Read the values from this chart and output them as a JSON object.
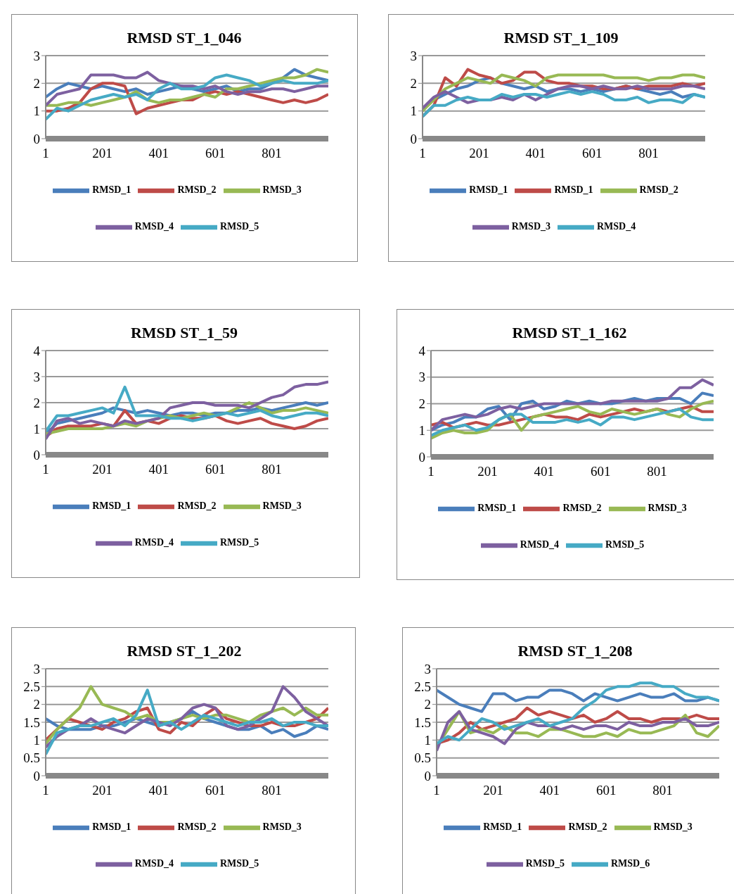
{
  "chart_data": [
    {
      "type": "line",
      "title": "RMSD  ST_1_046",
      "x": [
        1,
        41,
        81,
        121,
        161,
        201,
        241,
        281,
        321,
        361,
        401,
        441,
        481,
        521,
        561,
        601,
        641,
        681,
        721,
        761,
        801,
        841,
        881,
        921,
        961,
        1001
      ],
      "xlim": [
        1,
        1001
      ],
      "xticks": [
        1,
        201,
        401,
        601,
        801
      ],
      "ylim": [
        0,
        3
      ],
      "yticks": [
        0,
        1,
        2,
        3
      ],
      "grid": "y",
      "legend": "bottom",
      "marker": "none",
      "series": [
        {
          "name": "RMSD_1",
          "color": "#4a7ebb",
          "values": [
            1.5,
            1.8,
            2.0,
            1.9,
            1.8,
            1.9,
            1.8,
            1.7,
            1.8,
            1.6,
            1.7,
            1.8,
            1.9,
            1.8,
            1.7,
            1.8,
            1.9,
            1.7,
            1.8,
            1.8,
            2.0,
            2.2,
            2.5,
            2.3,
            2.2,
            2.1
          ]
        },
        {
          "name": "RMSD_2",
          "color": "#be4b48",
          "values": [
            1.0,
            1.0,
            1.1,
            1.3,
            1.8,
            2.0,
            2.0,
            1.9,
            0.9,
            1.1,
            1.2,
            1.3,
            1.4,
            1.4,
            1.6,
            1.7,
            1.6,
            1.7,
            1.6,
            1.5,
            1.4,
            1.3,
            1.4,
            1.3,
            1.4,
            1.6
          ]
        },
        {
          "name": "RMSD_3",
          "color": "#98b954",
          "values": [
            1.2,
            1.2,
            1.3,
            1.3,
            1.2,
            1.3,
            1.4,
            1.5,
            1.7,
            1.4,
            1.3,
            1.4,
            1.4,
            1.5,
            1.6,
            1.5,
            1.8,
            1.8,
            1.9,
            2.0,
            2.1,
            2.2,
            2.2,
            2.3,
            2.5,
            2.4
          ]
        },
        {
          "name": "RMSD_4",
          "color": "#7d60a0",
          "values": [
            1.2,
            1.6,
            1.7,
            1.8,
            2.3,
            2.3,
            2.3,
            2.2,
            2.2,
            2.4,
            2.1,
            2.0,
            1.9,
            1.9,
            1.8,
            1.9,
            1.7,
            1.6,
            1.7,
            1.7,
            1.8,
            1.8,
            1.7,
            1.8,
            1.9,
            1.9
          ]
        },
        {
          "name": "RMSD_5",
          "color": "#46aac5",
          "values": [
            0.7,
            1.1,
            1.0,
            1.2,
            1.4,
            1.5,
            1.6,
            1.5,
            1.6,
            1.4,
            1.8,
            2.0,
            1.8,
            1.8,
            1.9,
            2.2,
            2.3,
            2.2,
            2.1,
            1.9,
            2.0,
            2.1,
            2.0,
            2.0,
            2.0,
            2.1
          ]
        }
      ]
    },
    {
      "type": "line",
      "title": "RMSD  ST_1_109",
      "x": [
        1,
        41,
        81,
        121,
        161,
        201,
        241,
        281,
        321,
        361,
        401,
        441,
        481,
        521,
        561,
        601,
        641,
        681,
        721,
        761,
        801,
        841,
        881,
        921,
        961,
        1001
      ],
      "xlim": [
        1,
        1001
      ],
      "xticks": [
        1,
        201,
        401,
        601,
        801
      ],
      "ylim": [
        0,
        3
      ],
      "yticks": [
        0,
        1,
        2,
        3
      ],
      "grid": "y",
      "legend": "bottom",
      "marker": "none",
      "series": [
        {
          "name": "RMSD_1",
          "color": "#4a7ebb",
          "values": [
            1.1,
            1.4,
            1.6,
            1.8,
            1.9,
            2.1,
            2.2,
            2.0,
            1.9,
            1.8,
            1.9,
            1.7,
            1.8,
            1.8,
            1.7,
            1.8,
            1.7,
            1.8,
            1.9,
            1.8,
            1.7,
            1.6,
            1.7,
            1.5,
            1.6,
            1.5
          ]
        },
        {
          "name": "RMSD_1",
          "color": "#be4b48",
          "values": [
            0.8,
            1.2,
            2.2,
            1.9,
            2.5,
            2.3,
            2.2,
            2.0,
            2.1,
            2.4,
            2.4,
            2.1,
            2.0,
            2.0,
            1.9,
            1.9,
            1.8,
            1.8,
            1.9,
            1.8,
            1.9,
            1.9,
            1.9,
            2.0,
            1.9,
            2.0
          ]
        },
        {
          "name": "RMSD_2",
          "color": "#98b954",
          "values": [
            1.0,
            1.4,
            1.8,
            2.0,
            2.2,
            2.1,
            2.0,
            2.3,
            2.2,
            2.1,
            1.9,
            2.2,
            2.3,
            2.3,
            2.3,
            2.3,
            2.3,
            2.2,
            2.2,
            2.2,
            2.1,
            2.2,
            2.2,
            2.3,
            2.3,
            2.2
          ]
        },
        {
          "name": "RMSD_3",
          "color": "#7d60a0",
          "values": [
            1.1,
            1.5,
            1.7,
            1.5,
            1.3,
            1.4,
            1.4,
            1.5,
            1.4,
            1.6,
            1.4,
            1.6,
            1.8,
            1.9,
            1.9,
            1.8,
            1.9,
            1.8,
            1.8,
            1.9,
            1.8,
            1.8,
            1.8,
            1.9,
            1.9,
            1.8
          ]
        },
        {
          "name": "RMSD_4",
          "color": "#46aac5",
          "values": [
            0.8,
            1.2,
            1.2,
            1.4,
            1.5,
            1.4,
            1.4,
            1.6,
            1.5,
            1.6,
            1.6,
            1.5,
            1.6,
            1.7,
            1.6,
            1.7,
            1.6,
            1.4,
            1.4,
            1.5,
            1.3,
            1.4,
            1.4,
            1.3,
            1.6,
            1.5
          ]
        }
      ]
    },
    {
      "type": "line",
      "title": "RMSD  ST_1_59",
      "x": [
        1,
        41,
        81,
        121,
        161,
        201,
        241,
        281,
        321,
        361,
        401,
        441,
        481,
        521,
        561,
        601,
        641,
        681,
        721,
        761,
        801,
        841,
        881,
        921,
        961,
        1001
      ],
      "xlim": [
        1,
        1001
      ],
      "xticks": [
        1,
        201,
        401,
        601,
        801
      ],
      "ylim": [
        0,
        4
      ],
      "yticks": [
        0,
        1,
        2,
        3,
        4
      ],
      "grid": "y",
      "legend": "bottom",
      "marker": "none",
      "series": [
        {
          "name": "RMSD_1",
          "color": "#4a7ebb",
          "values": [
            0.8,
            1.2,
            1.3,
            1.4,
            1.5,
            1.6,
            1.8,
            1.7,
            1.6,
            1.7,
            1.6,
            1.5,
            1.6,
            1.6,
            1.5,
            1.6,
            1.6,
            1.7,
            1.7,
            1.8,
            1.7,
            1.8,
            1.9,
            2.0,
            1.9,
            2.0
          ]
        },
        {
          "name": "RMSD_2",
          "color": "#be4b48",
          "values": [
            0.7,
            1.0,
            1.1,
            1.1,
            1.1,
            1.2,
            1.1,
            1.7,
            1.2,
            1.3,
            1.2,
            1.4,
            1.5,
            1.4,
            1.4,
            1.5,
            1.3,
            1.2,
            1.3,
            1.4,
            1.2,
            1.1,
            1.0,
            1.1,
            1.3,
            1.4
          ]
        },
        {
          "name": "RMSD_3",
          "color": "#98b954",
          "values": [
            0.8,
            0.9,
            1.0,
            1.0,
            1.0,
            1.0,
            1.1,
            1.2,
            1.1,
            1.3,
            1.4,
            1.5,
            1.4,
            1.5,
            1.6,
            1.5,
            1.6,
            1.8,
            2.0,
            1.8,
            1.6,
            1.7,
            1.7,
            1.8,
            1.7,
            1.6
          ]
        },
        {
          "name": "RMSD_4",
          "color": "#7d60a0",
          "values": [
            0.6,
            1.3,
            1.4,
            1.2,
            1.3,
            1.2,
            1.1,
            1.3,
            1.2,
            1.3,
            1.4,
            1.8,
            1.9,
            2.0,
            2.0,
            1.9,
            1.9,
            1.9,
            1.8,
            2.0,
            2.2,
            2.3,
            2.6,
            2.7,
            2.7,
            2.8
          ]
        },
        {
          "name": "RMSD_5",
          "color": "#46aac5",
          "values": [
            0.9,
            1.5,
            1.5,
            1.6,
            1.7,
            1.8,
            1.6,
            2.6,
            1.5,
            1.5,
            1.5,
            1.4,
            1.4,
            1.3,
            1.4,
            1.5,
            1.6,
            1.5,
            1.6,
            1.7,
            1.5,
            1.4,
            1.5,
            1.6,
            1.6,
            1.5
          ]
        }
      ]
    },
    {
      "type": "line",
      "title": "RMSD  ST_1_162",
      "x": [
        1,
        41,
        81,
        121,
        161,
        201,
        241,
        281,
        321,
        361,
        401,
        441,
        481,
        521,
        561,
        601,
        641,
        681,
        721,
        761,
        801,
        841,
        881,
        921,
        961,
        1001
      ],
      "xlim": [
        1,
        1001
      ],
      "xticks": [
        1,
        201,
        401,
        601,
        801
      ],
      "ylim": [
        0,
        4
      ],
      "yticks": [
        0,
        1,
        2,
        3,
        4
      ],
      "grid": "y",
      "legend": "bottom",
      "marker": "none",
      "series": [
        {
          "name": "RMSD_1",
          "color": "#4a7ebb",
          "values": [
            1.0,
            1.2,
            1.3,
            1.5,
            1.5,
            1.8,
            1.9,
            1.4,
            2.0,
            2.1,
            1.8,
            1.9,
            2.1,
            2.0,
            2.1,
            2.0,
            2.0,
            2.1,
            2.2,
            2.1,
            2.2,
            2.2,
            2.2,
            2.0,
            2.4,
            2.3
          ]
        },
        {
          "name": "RMSD_2",
          "color": "#be4b48",
          "values": [
            1.2,
            1.3,
            1.1,
            1.2,
            1.3,
            1.2,
            1.2,
            1.3,
            1.4,
            1.5,
            1.6,
            1.5,
            1.5,
            1.4,
            1.6,
            1.5,
            1.6,
            1.7,
            1.8,
            1.7,
            1.8,
            1.7,
            1.8,
            1.9,
            1.7,
            1.7
          ]
        },
        {
          "name": "RMSD_3",
          "color": "#98b954",
          "values": [
            0.7,
            0.9,
            1.0,
            0.9,
            0.9,
            1.0,
            1.4,
            1.6,
            1.0,
            1.5,
            1.6,
            1.7,
            1.8,
            1.9,
            1.7,
            1.6,
            1.8,
            1.7,
            1.6,
            1.7,
            1.8,
            1.6,
            1.5,
            1.8,
            2.0,
            2.1
          ]
        },
        {
          "name": "RMSD_4",
          "color": "#7d60a0",
          "values": [
            1.0,
            1.4,
            1.5,
            1.6,
            1.5,
            1.6,
            1.8,
            1.9,
            1.8,
            1.9,
            2.0,
            2.0,
            2.0,
            2.0,
            2.0,
            2.0,
            2.1,
            2.1,
            2.1,
            2.1,
            2.1,
            2.2,
            2.6,
            2.6,
            2.9,
            2.7
          ]
        },
        {
          "name": "RMSD_5",
          "color": "#46aac5",
          "values": [
            0.8,
            1.0,
            1.1,
            1.2,
            1.0,
            1.1,
            1.4,
            1.6,
            1.6,
            1.3,
            1.3,
            1.3,
            1.4,
            1.3,
            1.4,
            1.2,
            1.5,
            1.5,
            1.4,
            1.5,
            1.6,
            1.7,
            1.8,
            1.5,
            1.4,
            1.4
          ]
        }
      ]
    },
    {
      "type": "line",
      "title": "RMSD  ST_1_202",
      "x": [
        1,
        41,
        81,
        121,
        161,
        201,
        241,
        281,
        321,
        361,
        401,
        441,
        481,
        521,
        561,
        601,
        641,
        681,
        721,
        761,
        801,
        841,
        881,
        921,
        961,
        1001
      ],
      "xlim": [
        1,
        1001
      ],
      "xticks": [
        1,
        201,
        401,
        601,
        801
      ],
      "ylim": [
        0,
        3
      ],
      "yticks": [
        0,
        0.5,
        1,
        1.5,
        2,
        2.5,
        3
      ],
      "grid": "y",
      "legend": "bottom",
      "marker": "none",
      "series": [
        {
          "name": "RMSD_1",
          "color": "#4a7ebb",
          "values": [
            1.6,
            1.4,
            1.3,
            1.3,
            1.3,
            1.4,
            1.4,
            1.5,
            1.6,
            1.5,
            1.4,
            1.5,
            1.6,
            1.8,
            1.6,
            1.5,
            1.4,
            1.3,
            1.3,
            1.4,
            1.2,
            1.3,
            1.1,
            1.2,
            1.4,
            1.3
          ]
        },
        {
          "name": "RMSD_2",
          "color": "#be4b48",
          "values": [
            1.0,
            1.3,
            1.6,
            1.5,
            1.4,
            1.3,
            1.5,
            1.6,
            1.8,
            1.9,
            1.3,
            1.2,
            1.5,
            1.4,
            1.7,
            1.9,
            1.6,
            1.5,
            1.4,
            1.4,
            1.5,
            1.4,
            1.4,
            1.5,
            1.6,
            1.9
          ]
        },
        {
          "name": "RMSD_3",
          "color": "#98b954",
          "values": [
            0.9,
            1.3,
            1.6,
            1.9,
            2.5,
            2.0,
            1.9,
            1.8,
            1.6,
            1.7,
            1.5,
            1.5,
            1.6,
            1.7,
            1.6,
            1.7,
            1.7,
            1.6,
            1.5,
            1.7,
            1.8,
            1.9,
            1.7,
            1.9,
            1.7,
            1.7
          ]
        },
        {
          "name": "RMSD_4",
          "color": "#7d60a0",
          "values": [
            0.8,
            1.1,
            1.3,
            1.4,
            1.6,
            1.4,
            1.3,
            1.2,
            1.4,
            1.6,
            1.5,
            1.4,
            1.6,
            1.9,
            2.0,
            1.9,
            1.4,
            1.3,
            1.4,
            1.6,
            1.8,
            2.5,
            2.2,
            1.8,
            1.6,
            1.4
          ]
        },
        {
          "name": "RMSD_5",
          "color": "#46aac5",
          "values": [
            0.6,
            1.2,
            1.3,
            1.4,
            1.4,
            1.5,
            1.6,
            1.4,
            1.7,
            2.4,
            1.4,
            1.5,
            1.3,
            1.5,
            1.7,
            1.6,
            1.5,
            1.4,
            1.5,
            1.5,
            1.6,
            1.4,
            1.5,
            1.5,
            1.4,
            1.4
          ]
        }
      ]
    },
    {
      "type": "line",
      "title": "RMSD  ST_1_208",
      "x": [
        1,
        41,
        81,
        121,
        161,
        201,
        241,
        281,
        321,
        361,
        401,
        441,
        481,
        521,
        561,
        601,
        641,
        681,
        721,
        761,
        801,
        841,
        881,
        921,
        961,
        1001
      ],
      "xlim": [
        1,
        1001
      ],
      "xticks": [
        1,
        201,
        401,
        601,
        801
      ],
      "ylim": [
        0,
        3
      ],
      "yticks": [
        0,
        0.5,
        1,
        1.5,
        2,
        2.5,
        3
      ],
      "grid": "y",
      "legend": "bottom",
      "marker": "none",
      "series": [
        {
          "name": "RMSD_1",
          "color": "#4a7ebb",
          "values": [
            2.4,
            2.2,
            2.0,
            1.9,
            1.8,
            2.3,
            2.3,
            2.1,
            2.2,
            2.2,
            2.4,
            2.4,
            2.3,
            2.1,
            2.3,
            2.2,
            2.1,
            2.2,
            2.3,
            2.2,
            2.2,
            2.3,
            2.1,
            2.1,
            2.2,
            2.1
          ]
        },
        {
          "name": "RMSD_2",
          "color": "#be4b48",
          "values": [
            0.9,
            1.0,
            1.2,
            1.5,
            1.3,
            1.4,
            1.5,
            1.6,
            1.9,
            1.7,
            1.8,
            1.7,
            1.6,
            1.7,
            1.5,
            1.6,
            1.8,
            1.6,
            1.6,
            1.5,
            1.6,
            1.6,
            1.6,
            1.7,
            1.6,
            1.6
          ]
        },
        {
          "name": "RMSD_3",
          "color": "#98b954",
          "values": [
            0.8,
            1.3,
            1.8,
            1.2,
            1.3,
            1.2,
            1.4,
            1.2,
            1.2,
            1.1,
            1.3,
            1.3,
            1.2,
            1.1,
            1.1,
            1.2,
            1.1,
            1.3,
            1.2,
            1.2,
            1.3,
            1.4,
            1.7,
            1.2,
            1.1,
            1.4
          ]
        },
        {
          "name": "RMSD_5",
          "color": "#7d60a0",
          "values": [
            0.7,
            1.5,
            1.8,
            1.3,
            1.2,
            1.1,
            0.9,
            1.3,
            1.5,
            1.4,
            1.4,
            1.3,
            1.4,
            1.3,
            1.4,
            1.4,
            1.3,
            1.5,
            1.4,
            1.4,
            1.5,
            1.5,
            1.6,
            1.4,
            1.4,
            1.5
          ]
        },
        {
          "name": "RMSD_6",
          "color": "#46aac5",
          "values": [
            0.9,
            1.1,
            1.0,
            1.3,
            1.6,
            1.5,
            1.3,
            1.4,
            1.5,
            1.6,
            1.4,
            1.5,
            1.6,
            1.9,
            2.1,
            2.4,
            2.5,
            2.5,
            2.6,
            2.6,
            2.5,
            2.5,
            2.3,
            2.2,
            2.2,
            2.1
          ]
        }
      ]
    }
  ]
}
